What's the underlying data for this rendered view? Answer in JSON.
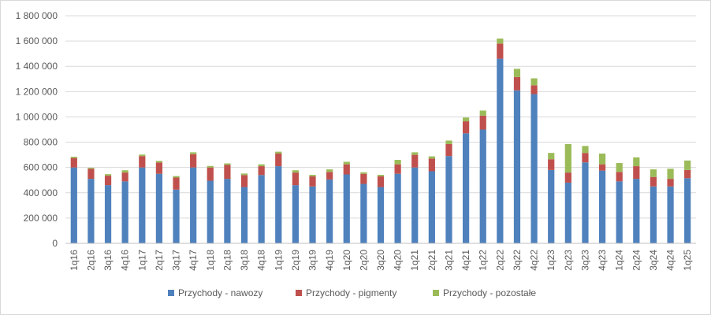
{
  "chart_data": {
    "type": "bar",
    "stacked": true,
    "categories": [
      "1q16",
      "2q16",
      "3q16",
      "4q16",
      "1q17",
      "2q17",
      "3q17",
      "4q17",
      "1q18",
      "2q18",
      "3q18",
      "4q18",
      "1q19",
      "2q19",
      "3q19",
      "4q19",
      "1q20",
      "2q20",
      "3q20",
      "4q20",
      "1q21",
      "2q21",
      "3q21",
      "4q21",
      "1q22",
      "2q22",
      "3q22",
      "4q22",
      "1q23",
      "2q23",
      "3q23",
      "4q23",
      "1q24",
      "2q24",
      "3q24",
      "4q24",
      "1q25"
    ],
    "series": [
      {
        "name": "Przychody - nawozy",
        "color": "#4f81bd",
        "values": [
          600000,
          510000,
          460000,
          490000,
          600000,
          550000,
          425000,
          600000,
          495000,
          510000,
          445000,
          540000,
          610000,
          460000,
          450000,
          505000,
          545000,
          470000,
          445000,
          550000,
          600000,
          570000,
          690000,
          870000,
          900000,
          1460000,
          1210000,
          1180000,
          580000,
          480000,
          640000,
          575000,
          490000,
          510000,
          450000,
          450000,
          515000
        ]
      },
      {
        "name": "Przychody - pigmenty",
        "color": "#c0504d",
        "values": [
          75000,
          80000,
          75000,
          70000,
          90000,
          90000,
          95000,
          105000,
          105000,
          110000,
          95000,
          70000,
          100000,
          100000,
          80000,
          60000,
          80000,
          80000,
          85000,
          75000,
          100000,
          100000,
          95000,
          95000,
          110000,
          120000,
          105000,
          70000,
          85000,
          80000,
          75000,
          50000,
          75000,
          100000,
          75000,
          60000,
          65000
        ]
      },
      {
        "name": "Przychody - pozostałe",
        "color": "#9bbb59",
        "values": [
          10000,
          8000,
          12000,
          18000,
          12000,
          12000,
          12000,
          15000,
          12000,
          12000,
          12000,
          15000,
          15000,
          18000,
          12000,
          20000,
          20000,
          12000,
          12000,
          35000,
          20000,
          18000,
          28000,
          30000,
          40000,
          40000,
          65000,
          55000,
          50000,
          225000,
          55000,
          85000,
          70000,
          70000,
          60000,
          80000,
          75000
        ]
      }
    ],
    "ylim": [
      0,
      1800000
    ],
    "yticks": [
      0,
      200000,
      400000,
      600000,
      800000,
      1000000,
      1200000,
      1400000,
      1600000,
      1800000
    ],
    "ytick_labels": [
      "0",
      "200 000",
      "400 000",
      "600 000",
      "800 000",
      "1 000 000",
      "1 200 000",
      "1 400 000",
      "1 600 000",
      "1 800 000"
    ],
    "grid": true,
    "legend_position": "bottom",
    "xlabel": "",
    "ylabel": "",
    "title": ""
  }
}
